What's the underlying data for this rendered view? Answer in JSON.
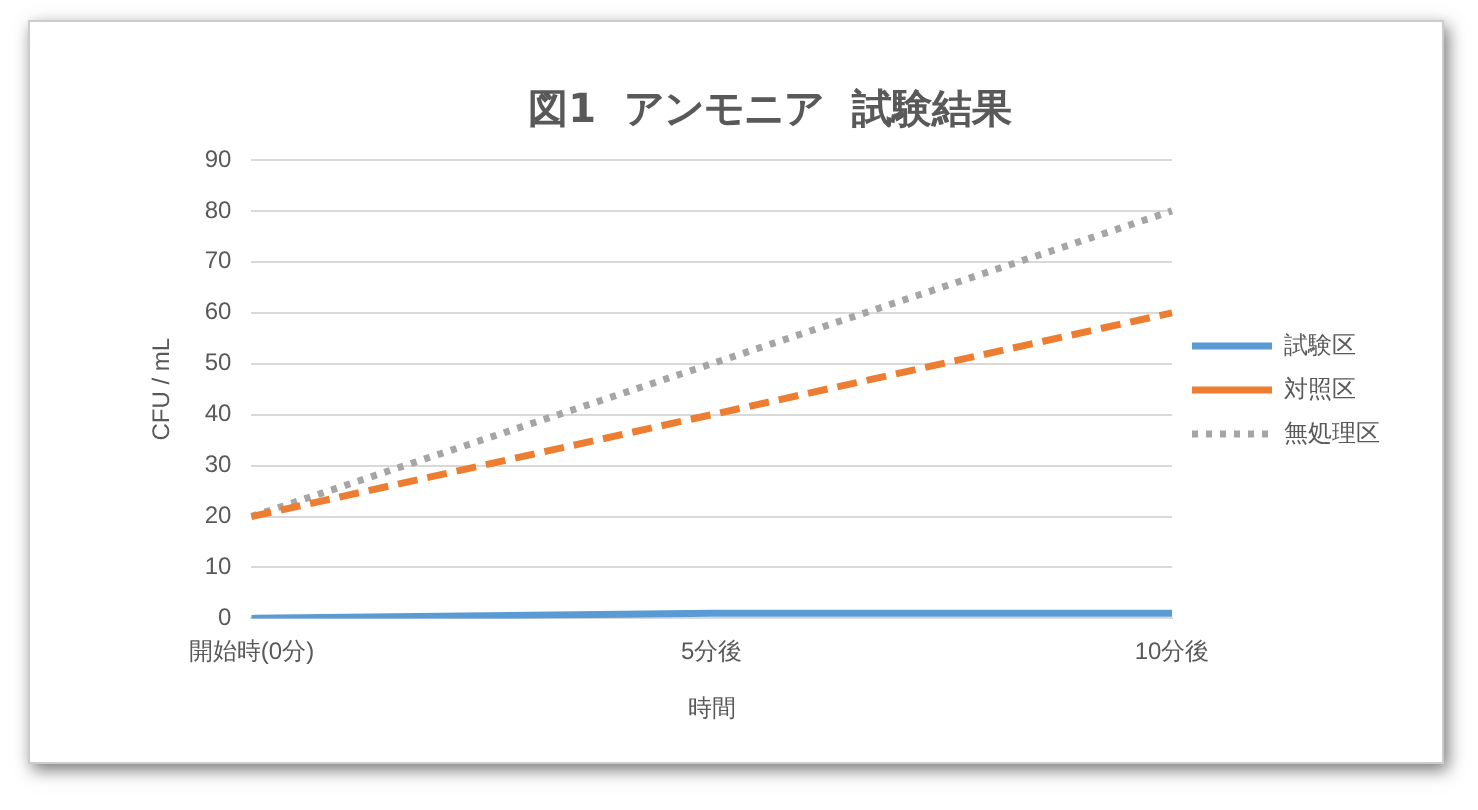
{
  "chart_data": {
    "type": "line",
    "title": "図1  アンモニア  試験結果",
    "xlabel": "時間",
    "ylabel": "CFU / mL",
    "categories": [
      "開始時(0分)",
      "5分後",
      "10分後"
    ],
    "series": [
      {
        "name": "試験区",
        "color": "#5b9bd5",
        "values": [
          0,
          1,
          1
        ],
        "line_style": "solid"
      },
      {
        "name": "対照区",
        "color": "#ed7d31",
        "values": [
          20,
          40,
          60
        ],
        "line_style": "dashed"
      },
      {
        "name": "無処理区",
        "color": "#a5a5a5",
        "values": [
          20,
          50,
          80
        ],
        "line_style": "dotted"
      }
    ],
    "ylim": [
      0,
      90
    ],
    "yticks": [
      0,
      10,
      20,
      30,
      40,
      50,
      60,
      70,
      80,
      90
    ],
    "grid": "y",
    "legend": "right",
    "marker": "none"
  }
}
